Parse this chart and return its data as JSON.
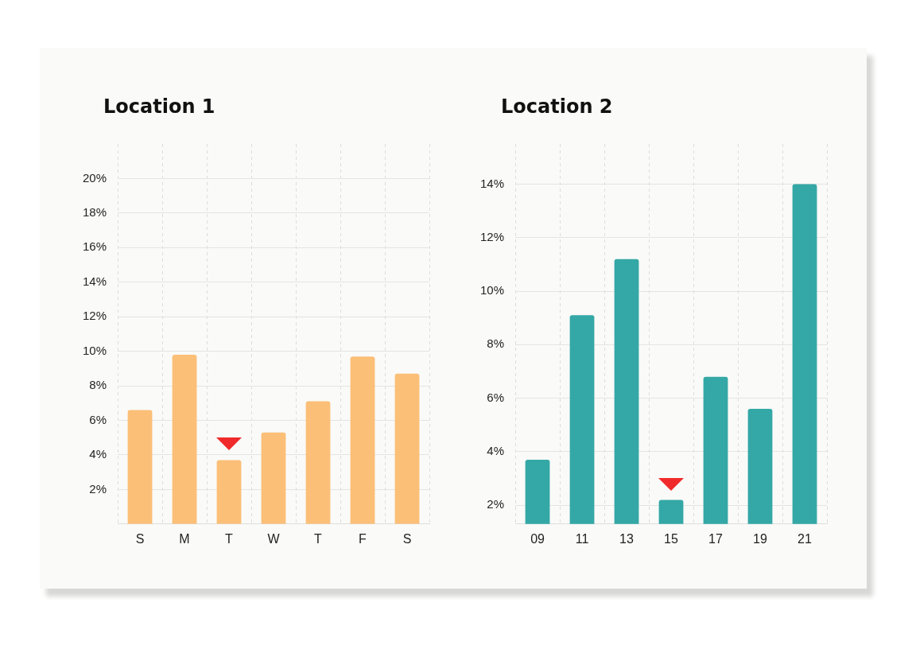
{
  "chart_data": [
    {
      "type": "bar",
      "title": "Location 1",
      "categories": [
        "S",
        "M",
        "T",
        "W",
        "T",
        "F",
        "S"
      ],
      "values": [
        6.6,
        9.8,
        3.7,
        5.3,
        7.1,
        9.7,
        8.7
      ],
      "color": "#fbbf77",
      "ylim": [
        0,
        22
      ],
      "yticks": [
        {
          "value": 2,
          "label": "2%"
        },
        {
          "value": 4,
          "label": "4%"
        },
        {
          "value": 6,
          "label": "6%"
        },
        {
          "value": 8,
          "label": "8%"
        },
        {
          "value": 10,
          "label": "10%"
        },
        {
          "value": 12,
          "label": "12%"
        },
        {
          "value": 14,
          "label": "14%"
        },
        {
          "value": 16,
          "label": "16%"
        },
        {
          "value": 18,
          "label": "18%"
        },
        {
          "value": 20,
          "label": "20%"
        }
      ],
      "grid": true
    },
    {
      "type": "bar",
      "title": "Location 2",
      "categories": [
        "09",
        "11",
        "13",
        "15",
        "17",
        "19",
        "21"
      ],
      "values": [
        3.7,
        9.1,
        11.2,
        2.2,
        6.8,
        5.6,
        14.0
      ],
      "color": "#34a8a6",
      "ylim": [
        1.3,
        15.5
      ],
      "yticks": [
        {
          "value": 2,
          "label": "2%"
        },
        {
          "value": 4,
          "label": "4%"
        },
        {
          "value": 6,
          "label": "6%"
        },
        {
          "value": 8,
          "label": "8%"
        },
        {
          "value": 10,
          "label": "10%"
        },
        {
          "value": 12,
          "label": "12%"
        },
        {
          "value": 14,
          "label": "14%"
        }
      ],
      "grid": true
    }
  ]
}
